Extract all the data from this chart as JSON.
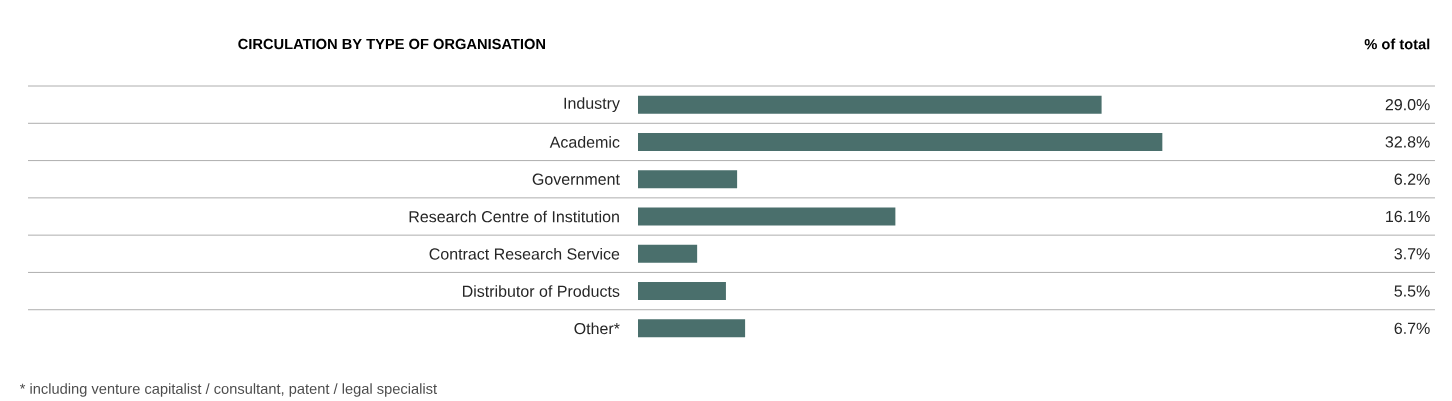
{
  "chart_data": {
    "type": "bar",
    "orientation": "horizontal",
    "title": "CIRCULATION BY TYPE OF ORGANISATION",
    "categories": [
      "Industry",
      "Academic",
      "Government",
      "Research Centre of Institution",
      "Contract Research Service",
      "Distributor of Products",
      "Other*"
    ],
    "values": [
      29.0,
      32.8,
      6.2,
      16.1,
      3.7,
      5.5,
      6.7
    ],
    "value_labels": [
      "29.0%",
      "32.8%",
      "6.2%",
      "16.1%",
      "3.7%",
      "5.5%",
      "6.7%"
    ],
    "color": "#4a6f6c",
    "grid": "y",
    "annotations": [
      "% of total",
      "* including venture capitalist / consultant, patent / legal specialist"
    ]
  }
}
